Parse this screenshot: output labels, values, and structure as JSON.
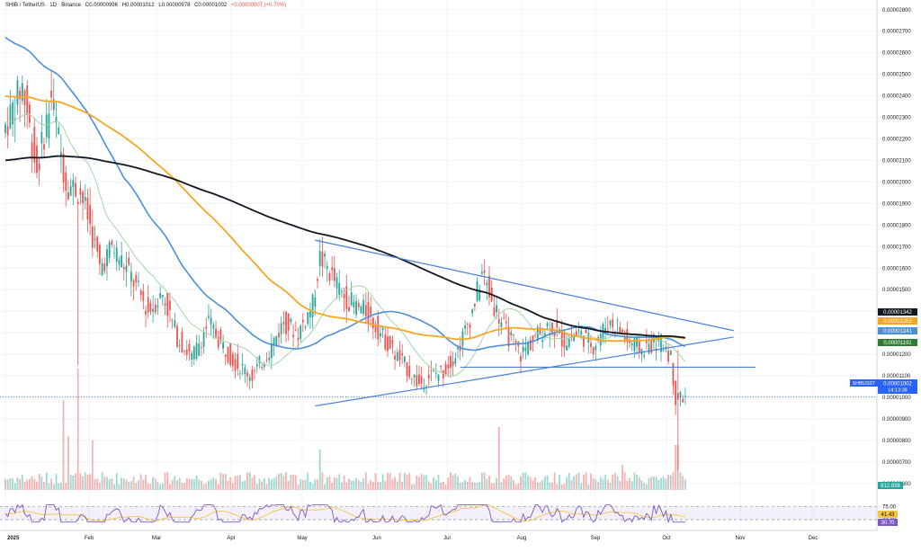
{
  "header": {
    "symbol": "SHIB / TetherUS · 1D · Binance",
    "open": "O0.00000996",
    "high": "H0.00001012",
    "low": "L0.00000978",
    "close": "C0.00001002",
    "change": "+0.00000007 (+0.70%)"
  },
  "chart_data": {
    "type": "candlestick",
    "title": "SHIB / TetherUS · 1D · Binance",
    "x_ticks": [
      "2025",
      "Feb",
      "Mar",
      "Apr",
      "May",
      "Jun",
      "Jul",
      "Aug",
      "Sep",
      "Oct",
      "Nov",
      "Dec"
    ],
    "y_ticks": [
      "0.00002800",
      "0.00002700",
      "0.00002600",
      "0.00002500",
      "0.00002400",
      "0.00002300",
      "0.00002200",
      "0.00002100",
      "0.00002000",
      "0.00001900",
      "0.00001800",
      "0.00001700",
      "0.00001600",
      "0.00001500",
      "0.00001400",
      "0.00001300",
      "0.00001200",
      "0.00001100",
      "0.00001000",
      "0.00000900",
      "0.00000800",
      "0.00000700",
      "0.00000600"
    ],
    "ylim": [
      5.7e-06,
      2.82e-05
    ],
    "colors": {
      "up": "#26a69a",
      "down": "#ef5350",
      "ma_fast": "#a5d6a7",
      "ma_mid": "#4a90d9",
      "ma_slow": "#f5a623",
      "ma_long": "#131722",
      "trendline": "#4a7fd9",
      "rsi": "#7e57c2",
      "rsi_ma": "#f5c542"
    },
    "price_labels": [
      {
        "text": "0.00001342",
        "color": "#131722"
      },
      {
        "text": "0.00001262",
        "color": "#f5a623"
      },
      {
        "text": "0.00001241",
        "color": "#4a90d9"
      },
      {
        "text": "0.00001191",
        "color": "#2e7d32"
      },
      {
        "text": "SHIBUSDT",
        "color": "#2962ff"
      },
      {
        "text": "0.00001002",
        "color": "#2962ff"
      },
      {
        "text": "14:13:38",
        "color": "#2962ff"
      }
    ],
    "volume_label": "812.838",
    "rsi_ticks": [
      "75.00",
      "30.00"
    ],
    "rsi_labels": [
      "41.43",
      "30.70"
    ],
    "candles_by_month": {
      "Jan": {
        "open": 2.23e-05,
        "high": 2.52e-05,
        "low": 1.9e-05,
        "close": 1.98e-05
      },
      "Feb": {
        "open": 1.98e-05,
        "high": 2e-05,
        "low": 1.3e-05,
        "close": 1.62e-05
      },
      "Mar": {
        "open": 1.62e-05,
        "high": 1.65e-05,
        "low": 1.1e-05,
        "close": 1.3e-05
      },
      "Apr": {
        "open": 1.3e-05,
        "high": 1.4e-05,
        "low": 1.07e-05,
        "close": 1.39e-05
      },
      "May": {
        "open": 1.39e-05,
        "high": 1.76e-05,
        "low": 1.35e-05,
        "close": 1.43e-05
      },
      "Jun": {
        "open": 1.43e-05,
        "high": 1.44e-05,
        "low": 1.03e-05,
        "close": 1.11e-05
      },
      "Jul": {
        "open": 1.11e-05,
        "high": 1.6e-05,
        "low": 1.1e-05,
        "close": 1.3e-05
      },
      "Aug": {
        "open": 1.3e-05,
        "high": 1.43e-05,
        "low": 1.19e-05,
        "close": 1.24e-05
      },
      "Sep": {
        "open": 1.24e-05,
        "high": 1.48e-05,
        "low": 1.2e-05,
        "close": 1.25e-05
      },
      "Oct": {
        "open": 1.25e-05,
        "high": 1.28e-05,
        "low": 6.6e-06,
        "close": 1e-05
      }
    }
  }
}
